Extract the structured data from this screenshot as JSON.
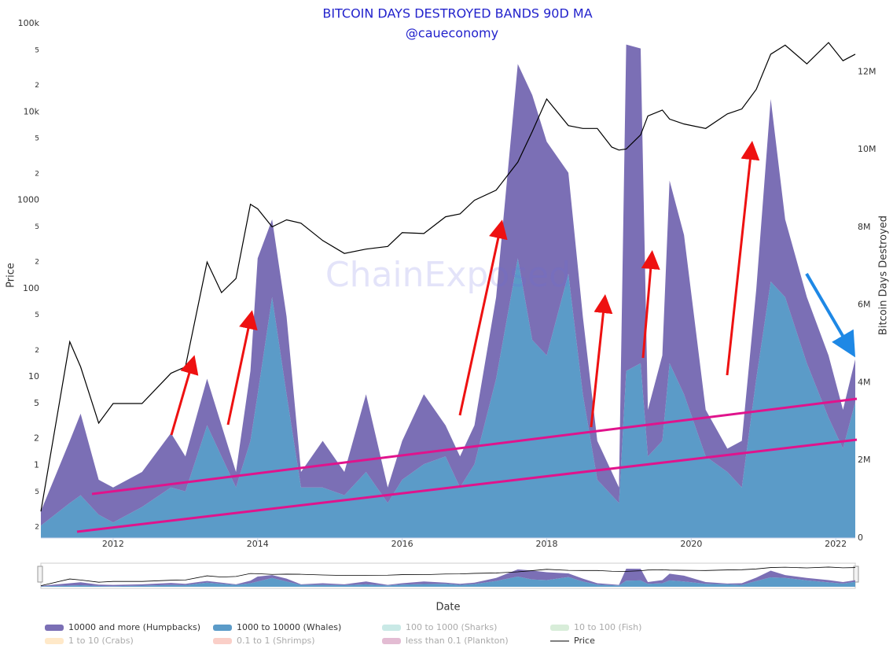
{
  "chart_data": {
    "type": "stacked-area-line",
    "title": "BITCOIN DAYS DESTROYED BANDS 90D MA",
    "subtitle": "@caueconomy",
    "watermark": "ChainExposed",
    "x_label": "Date",
    "y_label": "Price",
    "y2_label": "Bitcoin Days Destroyed",
    "x": [
      2011.0,
      2011.4,
      2011.55,
      2011.8,
      2012.0,
      2012.4,
      2012.8,
      2013.0,
      2013.3,
      2013.5,
      2013.7,
      2013.9,
      2014.0,
      2014.2,
      2014.4,
      2014.6,
      2014.9,
      2015.2,
      2015.5,
      2015.8,
      2016.0,
      2016.3,
      2016.6,
      2016.8,
      2017.0,
      2017.3,
      2017.6,
      2017.8,
      2018.0,
      2018.3,
      2018.5,
      2018.7,
      2018.9,
      2019.0,
      2019.1,
      2019.3,
      2019.4,
      2019.6,
      2019.7,
      2019.9,
      2020.2,
      2020.5,
      2020.7,
      2020.9,
      2021.1,
      2021.3,
      2021.6,
      2021.9,
      2022.1,
      2022.27
    ],
    "xlim": [
      2011.0,
      2022.27
    ],
    "xticks": [
      2012,
      2014,
      2016,
      2018,
      2020,
      2022
    ],
    "log_y": true,
    "ylim": [
      0.15,
      100000
    ],
    "yticks": [
      {
        "value": 100000,
        "label": "100k"
      },
      {
        "value": 50000,
        "label": "5"
      },
      {
        "value": 20000,
        "label": "2"
      },
      {
        "value": 10000,
        "label": "10k"
      },
      {
        "value": 5000,
        "label": "5"
      },
      {
        "value": 2000,
        "label": "2"
      },
      1000,
      {
        "value": 500,
        "label": "5"
      },
      {
        "value": 200,
        "label": "2"
      },
      100,
      {
        "value": 50,
        "label": "5"
      },
      {
        "value": 20,
        "label": "2"
      },
      10,
      5,
      2,
      1,
      {
        "value": 0.5,
        "label": "5"
      },
      {
        "value": 0.2,
        "label": "2"
      }
    ],
    "y2lim": [
      0,
      13240000
    ],
    "y2ticks": [
      0,
      {
        "value": 2000000,
        "label": "2M"
      },
      {
        "value": 4000000,
        "label": "4M"
      },
      {
        "value": 6000000,
        "label": "6M"
      },
      {
        "value": 8000000,
        "label": "8M"
      },
      {
        "value": 10000000,
        "label": "10M"
      },
      {
        "value": 12000000,
        "label": "12M"
      }
    ],
    "series": [
      {
        "name": "10000 and more (Humpbacks)",
        "color": "#7b6fb5",
        "axis": "y2",
        "visible": true,
        "values": [
          370000,
          1600000,
          2100000,
          900000,
          900000,
          900000,
          1400000,
          900000,
          1200000,
          800000,
          400000,
          1800000,
          3500000,
          2000000,
          2000000,
          400000,
          1200000,
          600000,
          2000000,
          400000,
          1000000,
          1800000,
          800000,
          800000,
          1000000,
          2100000,
          5000000,
          6300000,
          5500000,
          2600000,
          2000000,
          1000000,
          600000,
          400000,
          8400000,
          8100000,
          1200000,
          2200000,
          4700000,
          4100000,
          1200000,
          600000,
          1200000,
          2300000,
          4700000,
          2000000,
          1700000,
          1600000,
          1000000,
          1100000
        ]
      },
      {
        "name": "1000 to 10000 (Whales)",
        "color": "#5b9bc8",
        "axis": "y2",
        "visible": true,
        "values": [
          320000,
          900000,
          1100000,
          600000,
          400000,
          800000,
          1300000,
          1200000,
          2900000,
          2100000,
          1300000,
          2500000,
          3700000,
          6200000,
          3700000,
          1300000,
          1300000,
          1100000,
          1700000,
          900000,
          1500000,
          1900000,
          2100000,
          1300000,
          1900000,
          4100000,
          7200000,
          5100000,
          4700000,
          6800000,
          3700000,
          1500000,
          1100000,
          900000,
          4300000,
          4500000,
          2100000,
          2500000,
          4500000,
          3700000,
          2100000,
          1700000,
          1300000,
          4100000,
          6600000,
          6200000,
          4500000,
          3100000,
          2300000,
          3500000
        ]
      },
      {
        "name": "100 to 1000 (Sharks)",
        "color": "#b2dfdb",
        "axis": "y2",
        "visible": false
      },
      {
        "name": "10 to 100 (Fish)",
        "color": "#c8e6c9",
        "axis": "y2",
        "visible": false
      },
      {
        "name": "1 to 10 (Crabs)",
        "color": "#ffe0b2",
        "axis": "y2",
        "visible": false
      },
      {
        "name": "0.1 to 1 (Shrimps)",
        "color": "#f8bbb0",
        "axis": "y2",
        "visible": false
      },
      {
        "name": "less than 0.1 (Plankton)",
        "color": "#d7a0c0",
        "axis": "y2",
        "visible": false
      },
      {
        "name": "Price",
        "color": "#000000",
        "axis": "y",
        "visible": true,
        "line": true,
        "values": [
          0.3,
          25,
          13,
          3,
          5,
          5,
          11,
          13,
          200,
          90,
          130,
          900,
          800,
          500,
          600,
          550,
          350,
          250,
          280,
          300,
          430,
          420,
          650,
          700,
          1000,
          1300,
          2700,
          6000,
          14000,
          7000,
          6500,
          6500,
          4000,
          3700,
          3800,
          5500,
          9000,
          10500,
          8300,
          7300,
          6500,
          9500,
          10800,
          18000,
          45000,
          57000,
          35000,
          61000,
          38000,
          45000
        ]
      }
    ]
  }
}
